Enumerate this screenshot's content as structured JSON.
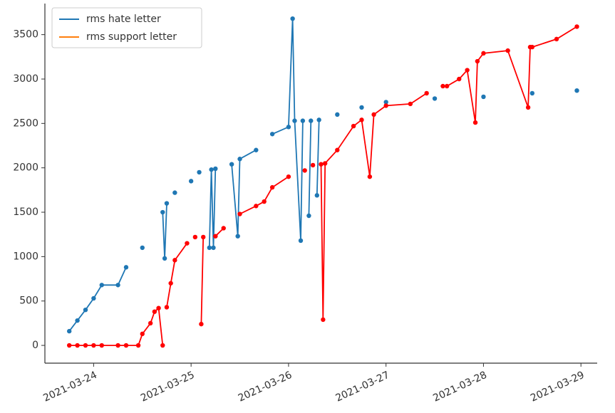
{
  "chart_data": {
    "type": "line",
    "x": [
      "2021-03-23T18:00",
      "2021-03-23T20:00",
      "2021-03-23T22:00",
      "2021-03-24T00:00",
      "2021-03-24T02:00",
      "2021-03-24T06:00",
      "2021-03-24T08:00",
      "2021-03-24T11:00",
      "2021-03-24T12:00",
      "2021-03-24T14:00",
      "2021-03-24T15:00",
      "2021-03-24T16:00",
      "2021-03-24T17:00",
      "2021-03-24T17:30",
      "2021-03-24T18:00",
      "2021-03-24T19:00",
      "2021-03-24T20:00",
      "2021-03-24T23:00",
      "2021-03-25T00:00",
      "2021-03-25T01:00",
      "2021-03-25T02:00",
      "2021-03-25T02:30",
      "2021-03-25T03:00",
      "2021-03-25T04:30",
      "2021-03-25T05:00",
      "2021-03-25T05:30",
      "2021-03-25T06:00",
      "2021-03-25T08:00",
      "2021-03-25T10:00",
      "2021-03-25T11:30",
      "2021-03-25T12:00",
      "2021-03-25T16:00",
      "2021-03-25T18:00",
      "2021-03-25T20:00",
      "2021-03-26T00:00",
      "2021-03-26T01:00",
      "2021-03-26T01:30",
      "2021-03-26T03:00",
      "2021-03-26T03:30",
      "2021-03-26T04:00",
      "2021-03-26T05:00",
      "2021-03-26T05:30",
      "2021-03-26T06:00",
      "2021-03-26T07:00",
      "2021-03-26T07:30",
      "2021-03-26T08:00",
      "2021-03-26T08:30",
      "2021-03-26T09:00",
      "2021-03-26T12:00",
      "2021-03-26T16:00",
      "2021-03-26T18:00",
      "2021-03-26T20:00",
      "2021-03-26T21:00",
      "2021-03-27T00:00",
      "2021-03-27T06:00",
      "2021-03-27T10:00",
      "2021-03-27T12:00",
      "2021-03-27T14:00",
      "2021-03-27T15:00",
      "2021-03-27T18:00",
      "2021-03-27T20:00",
      "2021-03-27T22:00",
      "2021-03-27T22:30",
      "2021-03-28T00:00",
      "2021-03-28T06:00",
      "2021-03-28T11:00",
      "2021-03-28T11:30",
      "2021-03-28T12:00",
      "2021-03-28T18:00",
      "2021-03-28T23:00"
    ],
    "series": [
      {
        "name": "rms hate letter",
        "color": "#1f77b4",
        "legend_color": "#1f77b4",
        "values": [
          160,
          280,
          400,
          530,
          680,
          680,
          880,
          null,
          1100,
          null,
          null,
          null,
          1500,
          980,
          1600,
          null,
          1720,
          null,
          1850,
          null,
          1950,
          null,
          null,
          1100,
          1980,
          1100,
          1990,
          null,
          2040,
          1230,
          2100,
          2200,
          null,
          2380,
          2460,
          3680,
          2530,
          1180,
          2530,
          null,
          1460,
          2530,
          null,
          1690,
          2540,
          null,
          null,
          null,
          2600,
          null,
          2680,
          null,
          null,
          2740,
          null,
          null,
          2780,
          null,
          null,
          null,
          null,
          null,
          null,
          2800,
          null,
          null,
          null,
          2840,
          null,
          2870
        ]
      },
      {
        "name": "rms support letter",
        "color": "red",
        "legend_color": "#ff7f0e",
        "values": [
          0,
          0,
          0,
          0,
          0,
          0,
          0,
          0,
          130,
          250,
          380,
          420,
          0,
          null,
          430,
          700,
          960,
          1150,
          null,
          1220,
          null,
          240,
          1220,
          null,
          null,
          null,
          1230,
          1320,
          null,
          null,
          1480,
          1570,
          1620,
          1780,
          1900,
          null,
          null,
          null,
          null,
          1970,
          null,
          null,
          2030,
          null,
          null,
          2040,
          290,
          2050,
          2200,
          2470,
          2540,
          1900,
          2600,
          2700,
          2720,
          2840,
          null,
          2920,
          2920,
          3000,
          3100,
          2510,
          3200,
          3290,
          3320,
          2680,
          3360,
          3360,
          3450,
          3590
        ]
      }
    ],
    "xlim": [
      "2021-03-23T12:00",
      "2021-03-29T04:00"
    ],
    "xticks": [
      "2021-03-24",
      "2021-03-25",
      "2021-03-26",
      "2021-03-27",
      "2021-03-28",
      "2021-03-29"
    ],
    "ylim": [
      -200,
      3850
    ],
    "yticks": [
      0,
      500,
      1000,
      1500,
      2000,
      2500,
      3000,
      3500
    ],
    "legend": "upper left"
  }
}
